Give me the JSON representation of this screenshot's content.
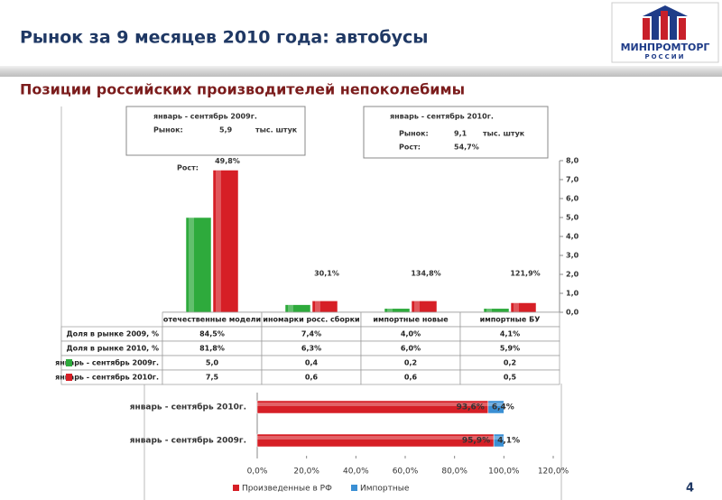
{
  "header": {
    "title": "Рынок за 9 месяцев 2010 года: автобусы",
    "subtitle": "Позиции российских производителей непоколебимы"
  },
  "logo": {
    "name": "МИНПРОМТОРГ",
    "country": "РОССИИ"
  },
  "page_number": "4",
  "info_boxes": [
    {
      "period": "январь - сентябрь 2009г.",
      "market_label": "Рынок:",
      "market_value": "5,9",
      "unit": "тыс. штук"
    },
    {
      "period": "январь - сентябрь 2010г.",
      "market_label": "Рынок:",
      "market_value": "9,1",
      "unit": "тыс. штук",
      "growth_label": "Рост:",
      "growth_value": "54,7%"
    }
  ],
  "chart_data": [
    {
      "type": "bar",
      "categories": [
        "отечественные модели",
        "иномарки росс. сборки",
        "импортные новые",
        "импортные БУ"
      ],
      "series": [
        {
          "name": "январь - сентябрь 2009г.",
          "color": "#2eaa3c",
          "values": [
            5.0,
            0.4,
            0.2,
            0.2
          ],
          "value_labels": [
            "5,0",
            "0,4",
            "0,2",
            "0,2"
          ]
        },
        {
          "name": "январь - сентябрь 2010г.",
          "color": "#d61f26",
          "values": [
            7.5,
            0.6,
            0.6,
            0.5
          ],
          "value_labels": [
            "7,5",
            "0,6",
            "0,6",
            "0,5"
          ]
        }
      ],
      "growth_label": "Рост:",
      "growth": [
        "49,8%",
        "30,1%",
        "134,8%",
        "121,9%"
      ],
      "table_rows": [
        {
          "label": "Доля в рынке 2009, %",
          "cells": [
            "84,5%",
            "7,4%",
            "4,0%",
            "4,1%"
          ]
        },
        {
          "label": "Доля в рынке 2010, %",
          "cells": [
            "81,8%",
            "6,3%",
            "6,0%",
            "5,9%"
          ]
        }
      ],
      "ylim": [
        0,
        8
      ],
      "yticks": [
        {
          "value": 0,
          "label": "0,0"
        },
        {
          "value": 1,
          "label": "1,0"
        },
        {
          "value": 2,
          "label": "2,0"
        },
        {
          "value": 3,
          "label": "3,0"
        },
        {
          "value": 4,
          "label": "4,0"
        },
        {
          "value": 5,
          "label": "5,0"
        },
        {
          "value": 6,
          "label": "6,0"
        },
        {
          "value": 7,
          "label": "7,0"
        },
        {
          "value": 8,
          "label": "8,0"
        }
      ],
      "axis_side": "right"
    },
    {
      "type": "barh",
      "categories": [
        "январь - сентябрь 2010г.",
        "январь - сентябрь 2009г."
      ],
      "series": [
        {
          "name": "Произведенные в РФ",
          "color": "#d61f26",
          "values": [
            93.6,
            95.9
          ],
          "value_labels": [
            "93,6%",
            "95,9%"
          ]
        },
        {
          "name": "Импортные",
          "color": "#3a8fd4",
          "values": [
            6.4,
            4.1
          ],
          "value_labels": [
            "6,4%",
            "4,1%"
          ]
        }
      ],
      "stacked": true,
      "xlim": [
        0,
        120
      ],
      "xticks": [
        {
          "value": 0,
          "label": "0,0%"
        },
        {
          "value": 20,
          "label": "20,0%"
        },
        {
          "value": 40,
          "label": "40,0%"
        },
        {
          "value": 60,
          "label": "60,0%"
        },
        {
          "value": 80,
          "label": "80,0%"
        },
        {
          "value": 100,
          "label": "100,0%"
        },
        {
          "value": 120,
          "label": "120,0%"
        }
      ],
      "legend": "bottom"
    }
  ]
}
